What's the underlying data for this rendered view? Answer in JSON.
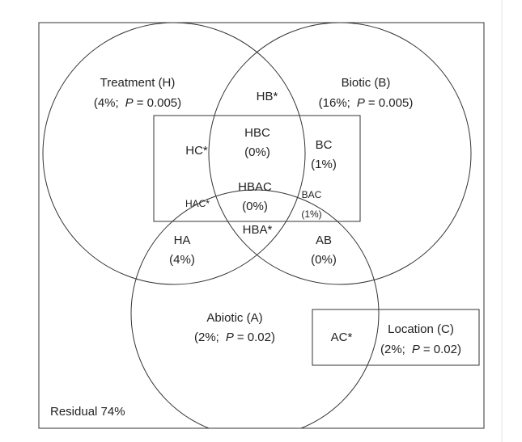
{
  "regions": [
    {
      "lines": [
        "Treatment (H)",
        {
          "pre": "(4%;",
          "stat": "P",
          "post": "= 0.005)"
        }
      ]
    },
    {
      "lines": [
        "Biotic (B)",
        {
          "pre": "(16%;",
          "stat": "P",
          "post": "= 0.005)"
        }
      ]
    },
    {
      "lines": [
        "HB*"
      ]
    },
    {
      "lines": [
        "HBC",
        "(0%)"
      ]
    },
    {
      "lines": [
        "HC*"
      ]
    },
    {
      "lines": [
        "BC",
        "(1%)"
      ]
    },
    {
      "lines": [
        "HBAC",
        "(0%)"
      ]
    },
    {
      "lines": [
        "HAC*"
      ]
    },
    {
      "lines": [
        "BAC",
        "(1%)"
      ]
    },
    {
      "lines": [
        "HBA*"
      ]
    },
    {
      "lines": [
        "HA",
        "(4%)"
      ]
    },
    {
      "lines": [
        "AB",
        "(0%)"
      ]
    },
    {
      "lines": [
        "Abiotic (A)",
        {
          "pre": "(2%;",
          "stat": "P",
          "post": "= 0.02)"
        }
      ]
    },
    {
      "lines": [
        "AC*"
      ]
    },
    {
      "lines": [
        "Location (C)",
        {
          "pre": "(2%;",
          "stat": "P",
          "post": "= 0.02)"
        }
      ]
    }
  ],
  "residual": "Residual 74%"
}
